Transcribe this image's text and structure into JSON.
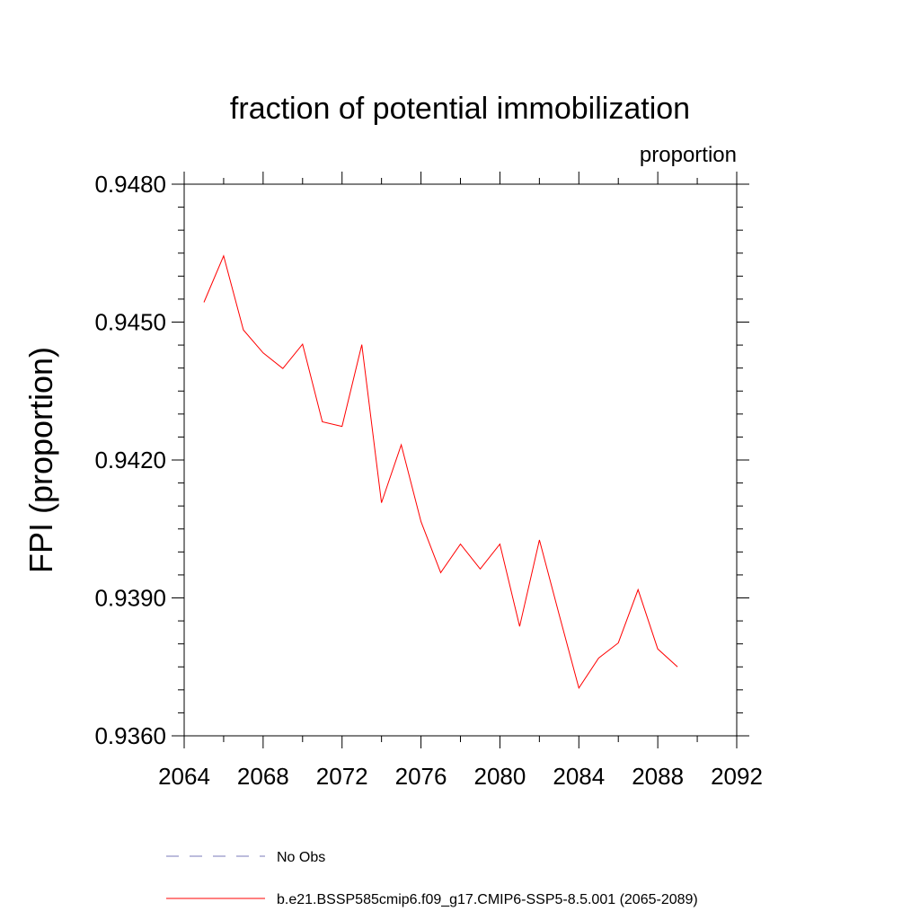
{
  "chart_data": {
    "type": "line",
    "title": "fraction of potential immobilization",
    "units_label": "proportion",
    "ylabel": "FPI  (proportion)",
    "xlabel": "",
    "xlim": [
      2064,
      2092
    ],
    "ylim": [
      0.936,
      0.948
    ],
    "x_ticks": [
      2064,
      2068,
      2072,
      2076,
      2080,
      2084,
      2088,
      2092
    ],
    "x_tick_labels": [
      "2064",
      "2068",
      "2072",
      "2076",
      "2080",
      "2084",
      "2088",
      "2092"
    ],
    "y_ticks": [
      0.936,
      0.939,
      0.942,
      0.945,
      0.948
    ],
    "y_tick_labels": [
      "0.9360",
      "0.9390",
      "0.9420",
      "0.9450",
      "0.9480"
    ],
    "grid": false,
    "legend_position": "bottom",
    "series": [
      {
        "name": "No Obs",
        "color": "#7a7ab8",
        "dash": "dashed",
        "x": [],
        "y": []
      },
      {
        "name": "b.e21.BSSP585cmip6.f09_g17.CMIP6-SSP5-8.5.001 (2065-2089)",
        "color": "#ff0000",
        "dash": "solid",
        "x": [
          2065,
          2066,
          2067,
          2068,
          2069,
          2070,
          2071,
          2072,
          2073,
          2074,
          2075,
          2076,
          2077,
          2078,
          2079,
          2080,
          2081,
          2082,
          2083,
          2084,
          2085,
          2086,
          2087,
          2088,
          2089
        ],
        "y": [
          0.94543,
          0.94644,
          0.94483,
          0.94433,
          0.94399,
          0.94452,
          0.94283,
          0.94273,
          0.94451,
          0.94107,
          0.94233,
          0.94066,
          0.93955,
          0.94017,
          0.93963,
          0.94017,
          0.93838,
          0.94026,
          0.93864,
          0.93704,
          0.93769,
          0.93802,
          0.93918,
          0.93789,
          0.9375
        ]
      }
    ]
  }
}
